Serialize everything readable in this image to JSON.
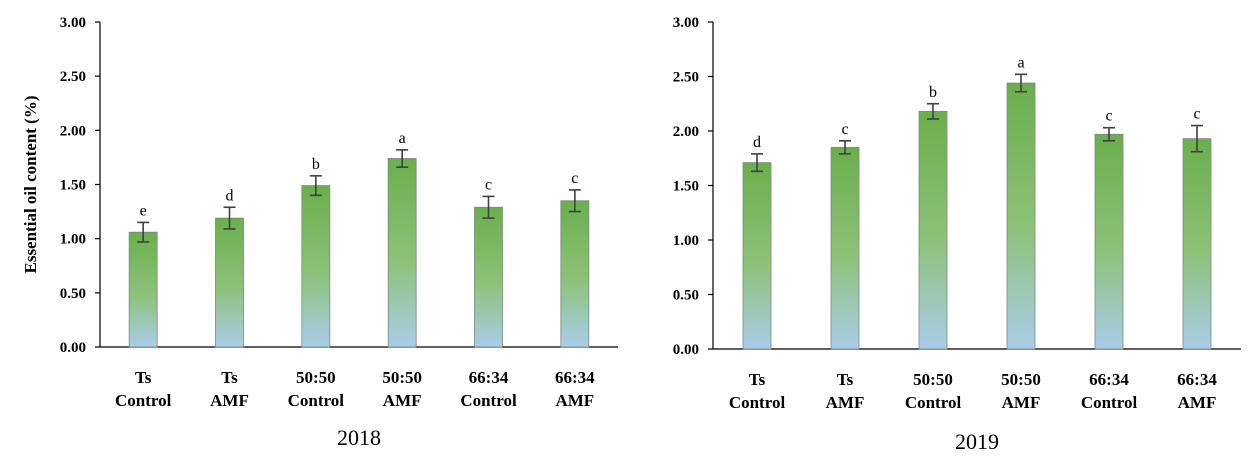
{
  "chart_data": [
    {
      "type": "bar",
      "title": "2018",
      "ylabel": "Essential oil content (%)",
      "ylim": [
        0,
        3
      ],
      "yticks": [
        "0.00",
        "0.50",
        "1.00",
        "1.50",
        "2.00",
        "2.50",
        "3.00"
      ],
      "categories": [
        [
          "Ts",
          "Control"
        ],
        [
          "Ts",
          "AMF"
        ],
        [
          "50:50",
          "Control"
        ],
        [
          "50:50",
          "AMF"
        ],
        [
          "66:34",
          "Control"
        ],
        [
          "66:34",
          "AMF"
        ]
      ],
      "values": [
        1.06,
        1.19,
        1.49,
        1.74,
        1.29,
        1.35
      ],
      "errors": [
        0.09,
        0.1,
        0.09,
        0.08,
        0.1,
        0.1
      ],
      "significance": [
        "e",
        "d",
        "b",
        "a",
        "c",
        "c"
      ],
      "colors": {
        "bar_top": "#6aaf4c",
        "bar_bottom": "#a9cde9",
        "bar_edge": "#7a8a7a"
      }
    },
    {
      "type": "bar",
      "title": "2019",
      "ylabel": "",
      "ylim": [
        0,
        3
      ],
      "yticks": [
        "0.00",
        "0.50",
        "1.00",
        "1.50",
        "2.00",
        "2.50",
        "3.00"
      ],
      "categories": [
        [
          "Ts",
          "Control"
        ],
        [
          "Ts",
          "AMF"
        ],
        [
          "50:50",
          "Control"
        ],
        [
          "50:50",
          "AMF"
        ],
        [
          "66:34",
          "Control"
        ],
        [
          "66:34",
          "AMF"
        ]
      ],
      "values": [
        1.71,
        1.85,
        2.18,
        2.44,
        1.97,
        1.93
      ],
      "errors": [
        0.08,
        0.06,
        0.07,
        0.08,
        0.06,
        0.12
      ],
      "significance": [
        "d",
        "c",
        "b",
        "a",
        "c",
        "c"
      ],
      "colors": {
        "bar_top": "#6aaf4c",
        "bar_bottom": "#a9cde9",
        "bar_edge": "#7a8a7a"
      }
    }
  ]
}
